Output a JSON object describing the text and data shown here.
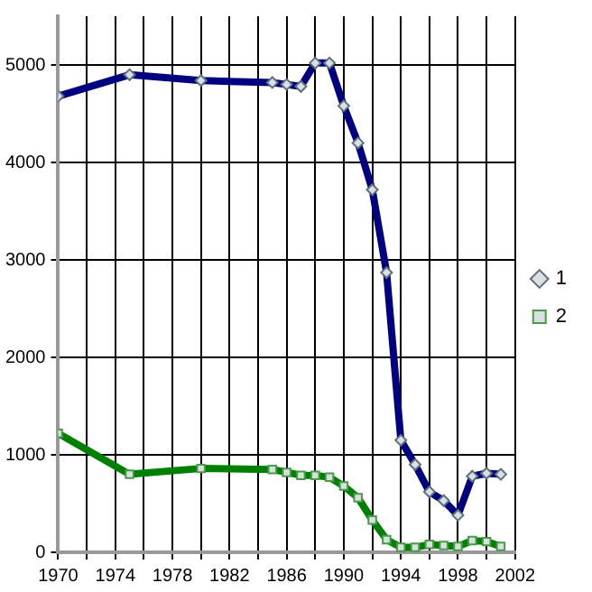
{
  "chart_data": {
    "type": "line",
    "x": [
      1970,
      1975,
      1980,
      1985,
      1986,
      1987,
      1988,
      1989,
      1990,
      1991,
      1992,
      1993,
      1994,
      1995,
      1996,
      1997,
      1998,
      1999,
      2000,
      2001
    ],
    "series": [
      {
        "name": "1",
        "color": "#000080",
        "values": [
          4680,
          4900,
          4840,
          4820,
          4800,
          4780,
          5020,
          5020,
          4580,
          4200,
          3720,
          2870,
          1150,
          900,
          620,
          530,
          380,
          780,
          810,
          800
        ],
        "marker": "diamond"
      },
      {
        "name": "2",
        "color": "#008000",
        "values": [
          1220,
          800,
          860,
          850,
          820,
          790,
          790,
          770,
          680,
          560,
          330,
          130,
          50,
          50,
          80,
          70,
          60,
          120,
          110,
          60
        ],
        "marker": "square"
      }
    ],
    "xlim": [
      1970,
      2002
    ],
    "xticks": [
      1970,
      {
        "value": 1972,
        "label": null
      },
      1974,
      {
        "value": 1976,
        "label": null
      },
      1978,
      {
        "value": 1980,
        "label": null
      },
      1982,
      {
        "value": 1984,
        "label": null
      },
      1986,
      {
        "value": 1988,
        "label": null
      },
      1990,
      {
        "value": 1992,
        "label": null
      },
      1994,
      {
        "value": 1996,
        "label": null
      },
      1998,
      {
        "value": 2000,
        "label": null
      },
      2002
    ],
    "ylim": [
      0,
      5500
    ],
    "yticks": [
      0,
      1000,
      2000,
      3000,
      4000,
      5000
    ],
    "grid": true,
    "legend": "right",
    "line_style": "solid"
  }
}
